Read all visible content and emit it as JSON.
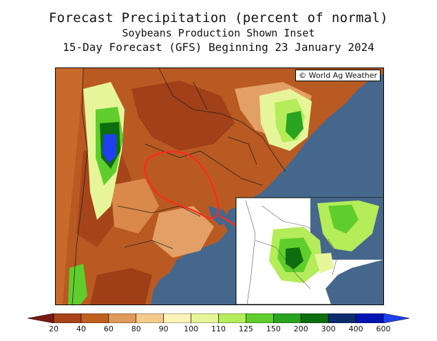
{
  "header": {
    "title": "Forecast Precipitation (percent of normal)",
    "subtitle": "Soybeans Production Shown Inset",
    "subtitle2": "15-Day Forecast (GFS) Beginning 23 January 2024"
  },
  "map": {
    "credit": "© World Ag Weather",
    "region": "Argentina, Uruguay, southern Brazil",
    "ocean_color": "#46678c"
  },
  "legend": {
    "labels": [
      "20",
      "40",
      "60",
      "80",
      "90",
      "100",
      "110",
      "125",
      "150",
      "200",
      "300",
      "400",
      "600"
    ],
    "colors": [
      "#7a1a12",
      "#a8431a",
      "#c0601f",
      "#e09a5a",
      "#f3cb8a",
      "#fdf3b8",
      "#e6f59a",
      "#b4ec5a",
      "#5fce2c",
      "#28a420",
      "#0d6e0f",
      "#0a2d6e",
      "#0014b4",
      "#1e40f0"
    ]
  }
}
